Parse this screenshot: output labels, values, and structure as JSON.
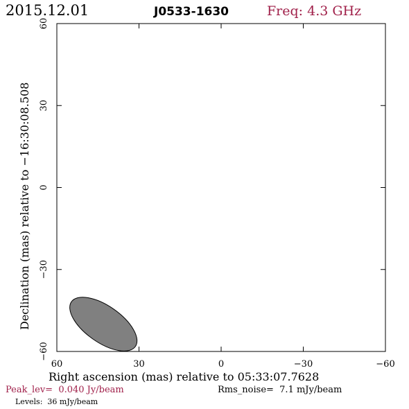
{
  "header": {
    "date": "2015.12.01",
    "source": "J0533-1630",
    "freq": "Freq: 4.3 GHz"
  },
  "footer": {
    "peak": "Peak_lev=  0.040 Jy/beam",
    "rms": "Rms_noise=  7.1 mJy/beam",
    "levels": "Levels:  36 mJy/beam"
  },
  "colors": {
    "accent": "#a0204a",
    "beam_fill": "#808080",
    "axis": "#000000"
  },
  "chart_data": {
    "type": "contour",
    "xlabel": "Right ascension (mas) relative to 05:33:07.7628",
    "ylabel": "Declination (mas) relative to −16:30:08.508",
    "xlim": [
      60,
      -60
    ],
    "ylim": [
      -60,
      60
    ],
    "x_ticks": [
      60,
      30,
      0,
      -30,
      -60
    ],
    "y_ticks": [
      -60,
      -30,
      0,
      30,
      60
    ],
    "x_tick_labels": [
      "60",
      "30",
      "0",
      "−30",
      "−60"
    ],
    "y_tick_labels": [
      "−60",
      "−30",
      "0",
      "30",
      "60"
    ],
    "grid": false,
    "beam": {
      "center_x": 43,
      "center_y": -50,
      "major_mas": 15,
      "minor_mas": 7,
      "pa_deg": 55
    },
    "contours": []
  }
}
